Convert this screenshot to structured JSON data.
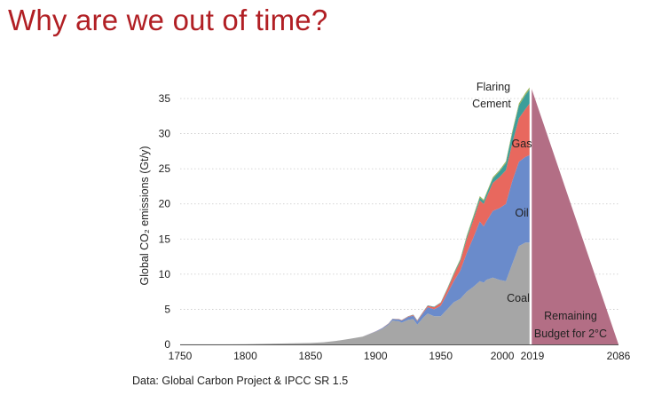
{
  "slide": {
    "title": "Why are we out of time?",
    "source": "Data: Global Carbon Project & IPCC SR 1.5"
  },
  "chart_data": {
    "type": "area",
    "stacked": true,
    "ylabel": "Global CO₂ emissions (Gt/y)",
    "ylim": [
      0,
      37
    ],
    "y_ticks": [
      0,
      5,
      10,
      15,
      20,
      25,
      30,
      35
    ],
    "x_ticks": [
      1750,
      1800,
      1850,
      1900,
      1950,
      2000,
      2019,
      2086
    ],
    "x_tick_labels": [
      "1750",
      "1800",
      "1850",
      "1900",
      "1950",
      "2000",
      "2019",
      "2086"
    ],
    "grid": "horizontal dotted",
    "x": [
      1750,
      1800,
      1850,
      1860,
      1870,
      1880,
      1890,
      1900,
      1905,
      1910,
      1913,
      1918,
      1920,
      1925,
      1929,
      1932,
      1937,
      1940,
      1945,
      1950,
      1955,
      1960,
      1965,
      1970,
      1975,
      1980,
      1983,
      1985,
      1990,
      1995,
      2000,
      2005,
      2010,
      2015,
      2019
    ],
    "series": [
      {
        "name": "Coal",
        "color": "#a6a6a6",
        "values": [
          0.01,
          0.03,
          0.2,
          0.3,
          0.5,
          0.8,
          1.1,
          1.8,
          2.2,
          2.8,
          3.4,
          3.3,
          3.1,
          3.5,
          3.6,
          2.8,
          3.9,
          4.4,
          4.0,
          4.0,
          5.0,
          6.0,
          6.5,
          7.5,
          8.2,
          9.0,
          8.8,
          9.2,
          9.5,
          9.2,
          9.0,
          11.5,
          14.0,
          14.5,
          14.5
        ]
      },
      {
        "name": "Oil",
        "color": "#6a8bcb",
        "values": [
          0,
          0,
          0,
          0,
          0,
          0,
          0,
          0.05,
          0.1,
          0.15,
          0.2,
          0.25,
          0.3,
          0.4,
          0.5,
          0.5,
          0.7,
          0.9,
          1.0,
          1.5,
          2.2,
          3.0,
          4.0,
          5.5,
          7.0,
          8.5,
          8.0,
          8.3,
          9.5,
          10.2,
          11.0,
          11.8,
          12.0,
          12.2,
          12.5
        ]
      },
      {
        "name": "Gas",
        "color": "#e8685e",
        "values": [
          0,
          0,
          0,
          0,
          0,
          0,
          0,
          0.01,
          0.02,
          0.03,
          0.04,
          0.05,
          0.06,
          0.08,
          0.1,
          0.1,
          0.15,
          0.2,
          0.3,
          0.4,
          0.6,
          0.9,
          1.3,
          2.0,
          2.5,
          3.0,
          3.2,
          3.4,
          4.0,
          4.4,
          4.8,
          5.4,
          6.2,
          6.8,
          7.5
        ]
      },
      {
        "name": "Cement",
        "color": "#3d9e9a",
        "values": [
          0,
          0,
          0,
          0,
          0,
          0,
          0,
          0,
          0,
          0.01,
          0.01,
          0.01,
          0.02,
          0.03,
          0.04,
          0.04,
          0.05,
          0.06,
          0.07,
          0.08,
          0.12,
          0.18,
          0.22,
          0.3,
          0.35,
          0.4,
          0.4,
          0.45,
          0.6,
          0.8,
          1.0,
          1.4,
          1.8,
          2.0,
          2.0
        ]
      },
      {
        "name": "Flaring",
        "color": "#9bb55d",
        "values": [
          0,
          0,
          0,
          0,
          0,
          0,
          0,
          0,
          0,
          0,
          0,
          0,
          0,
          0,
          0,
          0,
          0,
          0,
          0,
          0.01,
          0.05,
          0.1,
          0.15,
          0.2,
          0.25,
          0.2,
          0.2,
          0.2,
          0.2,
          0.2,
          0.25,
          0.3,
          0.3,
          0.3,
          0.3
        ]
      }
    ],
    "remaining_budget": {
      "label_line1": "Remaining",
      "label_line2": "Budget for 2°C",
      "start_year": 2019,
      "start_value": 36.8,
      "end_year": 2086,
      "end_value": 0,
      "color": "#b36e85"
    }
  }
}
